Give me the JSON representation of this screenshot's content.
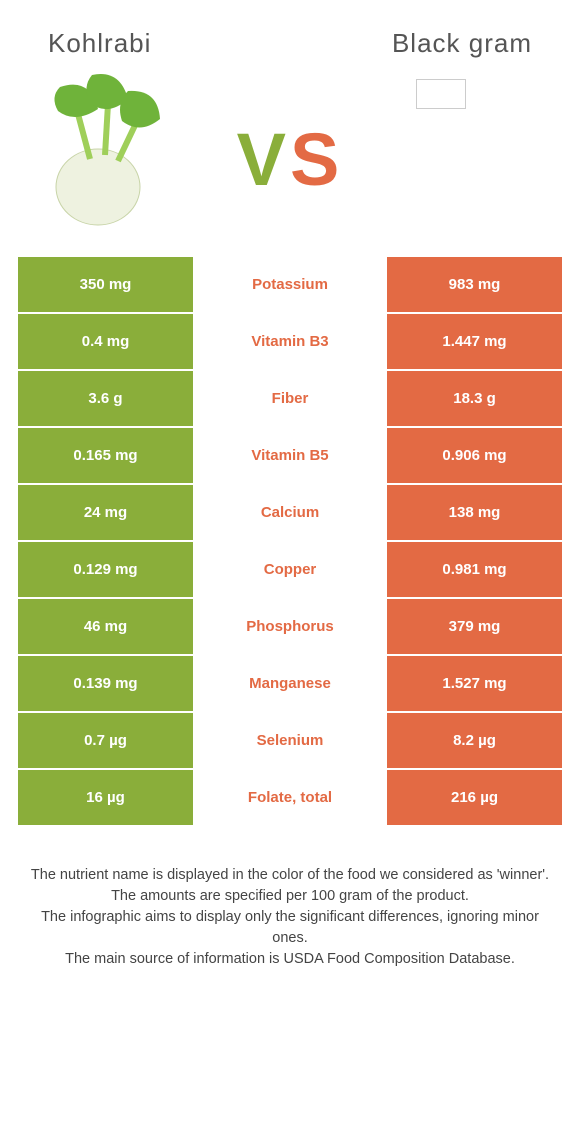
{
  "header": {
    "left_title": "Kohlrabi",
    "right_title": "Black gram"
  },
  "vs": {
    "v": "V",
    "s": "S"
  },
  "colors": {
    "left_bg": "#8aae3a",
    "right_bg": "#e36a44",
    "left_text": "#8aae3a",
    "right_text": "#e36a44",
    "cell_text": "#ffffff",
    "row_gap_bg": "#ffffff"
  },
  "table": {
    "rows": [
      {
        "left": "350 mg",
        "label": "Potassium",
        "right": "983 mg",
        "winner": "right"
      },
      {
        "left": "0.4 mg",
        "label": "Vitamin B3",
        "right": "1.447 mg",
        "winner": "right"
      },
      {
        "left": "3.6 g",
        "label": "Fiber",
        "right": "18.3 g",
        "winner": "right"
      },
      {
        "left": "0.165 mg",
        "label": "Vitamin B5",
        "right": "0.906 mg",
        "winner": "right"
      },
      {
        "left": "24 mg",
        "label": "Calcium",
        "right": "138 mg",
        "winner": "right"
      },
      {
        "left": "0.129 mg",
        "label": "Copper",
        "right": "0.981 mg",
        "winner": "right"
      },
      {
        "left": "46 mg",
        "label": "Phosphorus",
        "right": "379 mg",
        "winner": "right"
      },
      {
        "left": "0.139 mg",
        "label": "Manganese",
        "right": "1.527 mg",
        "winner": "right"
      },
      {
        "left": "0.7 µg",
        "label": "Selenium",
        "right": "8.2 µg",
        "winner": "right"
      },
      {
        "left": "16 µg",
        "label": "Folate, total",
        "right": "216 µg",
        "winner": "right"
      }
    ]
  },
  "footer": {
    "line1": "The nutrient name is displayed in the color of the food we considered as 'winner'.",
    "line2": "The amounts are specified per 100 gram of the product.",
    "line3": "The infographic aims to display only the significant differences, ignoring minor ones.",
    "line4": "The main source of information is USDA Food Composition Database."
  }
}
